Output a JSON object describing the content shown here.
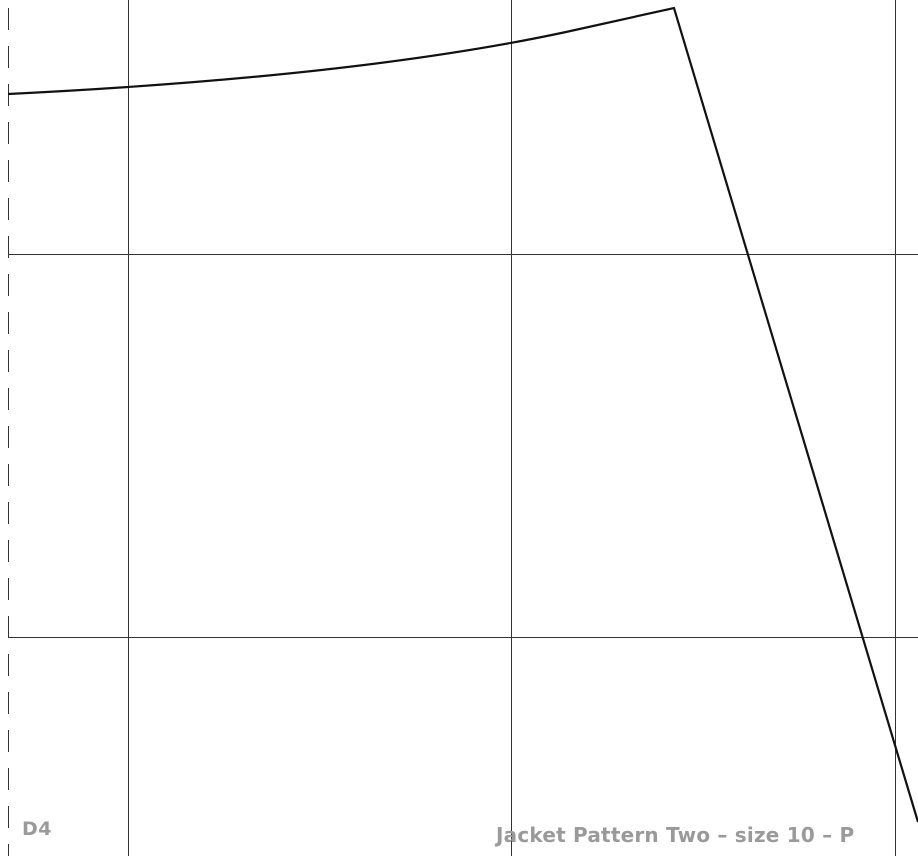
{
  "sheet": {
    "tile_id": "D4",
    "title": "Jacket Pattern Two – size 10 – P",
    "grid_color": "#333333",
    "line_color": "#111111",
    "label_color": "#9a9a9a",
    "background": "#ffffff"
  }
}
